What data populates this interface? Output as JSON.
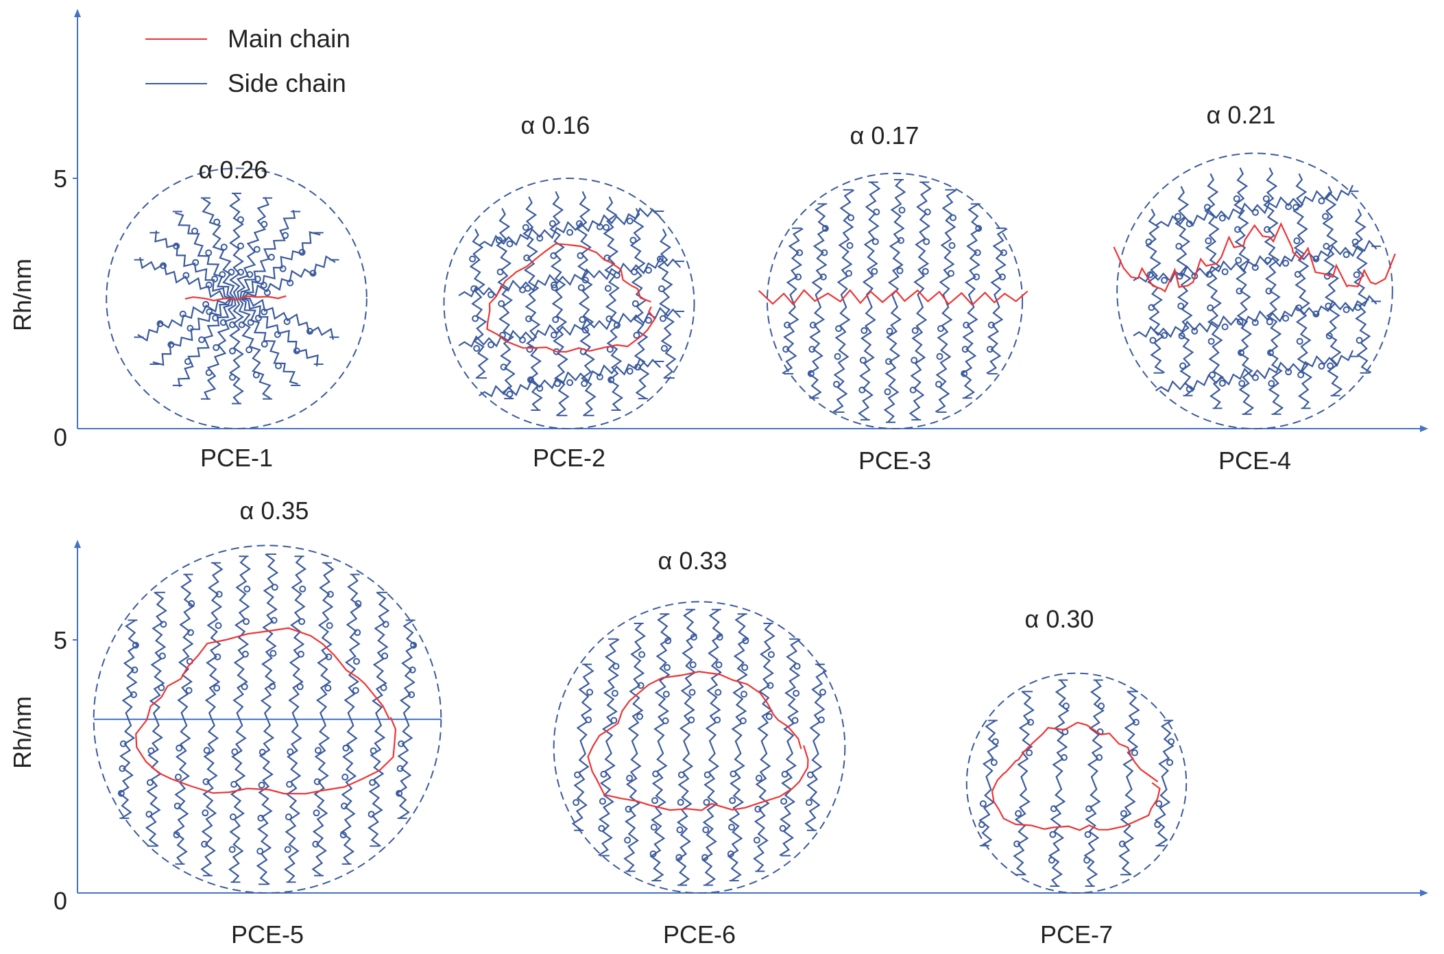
{
  "legend": {
    "items": [
      {
        "label": "Main chain",
        "color": "#ee3333"
      },
      {
        "label": "Side chain",
        "color": "#3a5a9c"
      }
    ]
  },
  "colors": {
    "axis": "#4472c4",
    "main_chain": "#ee3333",
    "side_chain": "#3a5a9c",
    "boundary_circle": "#3a5a9c"
  },
  "rows": [
    {
      "y_axis_label": "Rh/nm",
      "y_ticks": [
        "5",
        "0"
      ],
      "molecules": [
        {
          "name": "PCE-1",
          "alpha": "α 0.26",
          "rh": 2.6
        },
        {
          "name": "PCE-2",
          "alpha": "α 0.16",
          "rh": 2.5
        },
        {
          "name": "PCE-3",
          "alpha": "α 0.17",
          "rh": 2.55
        },
        {
          "name": "PCE-4",
          "alpha": "α 0.21",
          "rh": 2.75
        }
      ]
    },
    {
      "y_axis_label": "Rh/nm",
      "y_ticks": [
        "5",
        "0"
      ],
      "molecules": [
        {
          "name": "PCE-5",
          "alpha": "α 0.35",
          "rh": 3.4
        },
        {
          "name": "PCE-6",
          "alpha": "α 0.33",
          "rh": 2.85
        },
        {
          "name": "PCE-7",
          "alpha": "α 0.30",
          "rh": 2.15
        }
      ]
    }
  ]
}
